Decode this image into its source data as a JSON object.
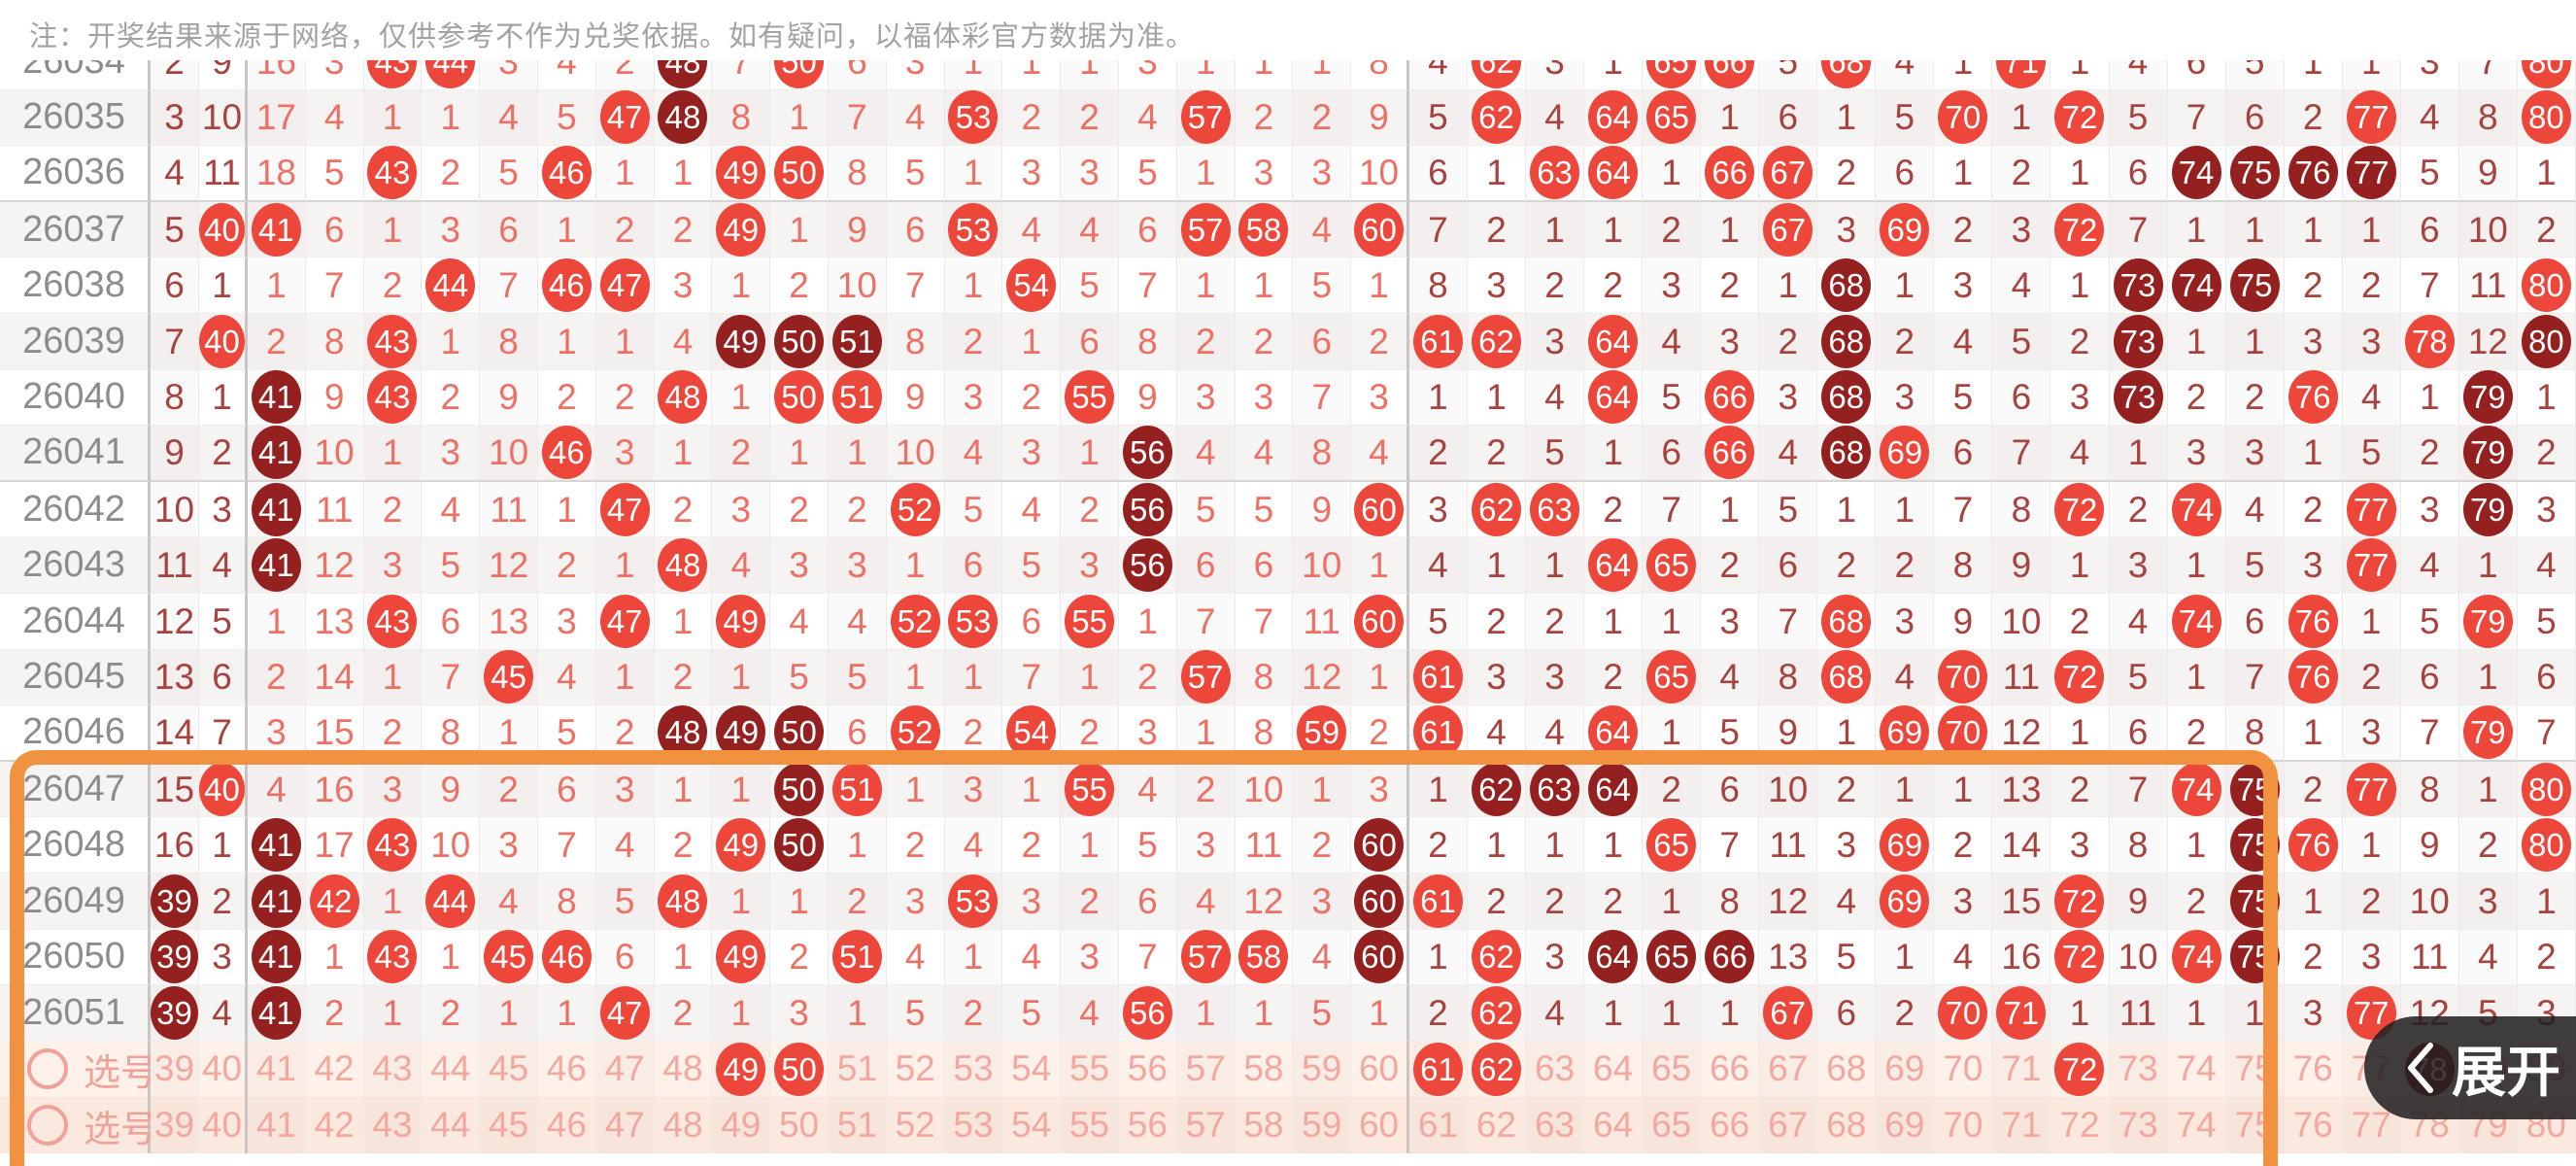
{
  "note": "注：开奖结果来源于网络，仅供参考不作为兑奖依据。如有疑问，以福体彩官方数据为准。",
  "expand_button": {
    "label": "展开",
    "icon": "chevron-left"
  },
  "columns": {
    "first_number": 39,
    "last_number": 80,
    "group_breaks_after": [
      40,
      60
    ]
  },
  "colors": {
    "ball_bright": "#ed463a",
    "ball_dark": "#94201f",
    "miss_text_outer_groups": "#a8423f",
    "miss_text_middle_group": "#ee6f64",
    "selection_text": "#f3a79e",
    "highlight_border": "#f0923f",
    "row_label": "#8c8c8c",
    "note_text": "#a2a2a2"
  },
  "partial_top_row": {
    "label": "26034",
    "cells": [
      "2",
      "9",
      "16",
      "3",
      "B43",
      "B44",
      "3",
      "4",
      "2",
      "D48",
      "7",
      "B50",
      "6",
      "3",
      "1",
      "1",
      "1",
      "3",
      "1",
      "1",
      "1",
      "8",
      "4",
      "B62",
      "3",
      "1",
      "B65",
      "B66",
      "5",
      "B68",
      "4",
      "1",
      "B71",
      "1",
      "4",
      "6",
      "5",
      "1",
      "1",
      "3",
      "7",
      "B80"
    ]
  },
  "rows": [
    {
      "label": "26035",
      "cells": [
        "3",
        "10",
        "17",
        "4",
        "1",
        "1",
        "4",
        "5",
        "B47",
        "D48",
        "8",
        "1",
        "7",
        "4",
        "B53",
        "2",
        "2",
        "4",
        "B57",
        "2",
        "2",
        "9",
        "5",
        "B62",
        "4",
        "B64",
        "B65",
        "1",
        "6",
        "1",
        "5",
        "B70",
        "1",
        "B72",
        "5",
        "7",
        "6",
        "2",
        "B77",
        "4",
        "8",
        "B80"
      ]
    },
    {
      "label": "26036",
      "cells": [
        "4",
        "11",
        "18",
        "5",
        "B43",
        "2",
        "5",
        "B46",
        "1",
        "1",
        "B49",
        "B50",
        "8",
        "5",
        "1",
        "3",
        "3",
        "5",
        "1",
        "3",
        "3",
        "10",
        "6",
        "1",
        "B63",
        "B64",
        "1",
        "B66",
        "B67",
        "2",
        "6",
        "1",
        "2",
        "1",
        "6",
        "D74",
        "D75",
        "D76",
        "D77",
        "5",
        "9",
        "1"
      ]
    },
    {
      "label": "26037",
      "cells": [
        "5",
        "B40",
        "B41",
        "6",
        "1",
        "3",
        "6",
        "1",
        "2",
        "2",
        "B49",
        "1",
        "9",
        "6",
        "B53",
        "4",
        "4",
        "6",
        "B57",
        "B58",
        "4",
        "B60",
        "7",
        "2",
        "1",
        "1",
        "2",
        "1",
        "B67",
        "3",
        "B69",
        "2",
        "3",
        "B72",
        "7",
        "1",
        "1",
        "1",
        "1",
        "6",
        "10",
        "2"
      ]
    },
    {
      "label": "26038",
      "cells": [
        "6",
        "1",
        "1",
        "7",
        "2",
        "B44",
        "7",
        "B46",
        "B47",
        "3",
        "1",
        "2",
        "10",
        "7",
        "1",
        "B54",
        "5",
        "7",
        "1",
        "1",
        "5",
        "1",
        "8",
        "3",
        "2",
        "2",
        "3",
        "2",
        "1",
        "D68",
        "1",
        "3",
        "4",
        "1",
        "D73",
        "D74",
        "D75",
        "2",
        "2",
        "7",
        "11",
        "B80"
      ]
    },
    {
      "label": "26039",
      "cells": [
        "7",
        "B40",
        "2",
        "8",
        "B43",
        "1",
        "8",
        "1",
        "1",
        "4",
        "D49",
        "D50",
        "D51",
        "8",
        "2",
        "1",
        "6",
        "8",
        "2",
        "2",
        "6",
        "2",
        "B61",
        "B62",
        "3",
        "B64",
        "4",
        "3",
        "2",
        "D68",
        "2",
        "4",
        "5",
        "2",
        "D73",
        "1",
        "1",
        "3",
        "3",
        "B78",
        "12",
        "D80"
      ]
    },
    {
      "label": "26040",
      "cells": [
        "8",
        "1",
        "D41",
        "9",
        "B43",
        "2",
        "9",
        "2",
        "2",
        "B48",
        "1",
        "B50",
        "B51",
        "9",
        "3",
        "2",
        "B55",
        "9",
        "3",
        "3",
        "7",
        "3",
        "1",
        "1",
        "4",
        "B64",
        "5",
        "B66",
        "3",
        "D68",
        "3",
        "5",
        "6",
        "3",
        "D73",
        "2",
        "2",
        "B76",
        "4",
        "1",
        "D79",
        "1"
      ]
    },
    {
      "label": "26041",
      "cells": [
        "9",
        "2",
        "D41",
        "10",
        "1",
        "3",
        "10",
        "B46",
        "3",
        "1",
        "2",
        "1",
        "1",
        "10",
        "4",
        "3",
        "1",
        "D56",
        "4",
        "4",
        "8",
        "4",
        "2",
        "2",
        "5",
        "1",
        "6",
        "B66",
        "4",
        "D68",
        "B69",
        "6",
        "7",
        "4",
        "1",
        "3",
        "3",
        "1",
        "5",
        "2",
        "D79",
        "2"
      ]
    },
    {
      "label": "26042",
      "cells": [
        "10",
        "3",
        "D41",
        "11",
        "2",
        "4",
        "11",
        "1",
        "B47",
        "2",
        "3",
        "2",
        "2",
        "B52",
        "5",
        "4",
        "2",
        "D56",
        "5",
        "5",
        "9",
        "B60",
        "3",
        "B62",
        "B63",
        "2",
        "7",
        "1",
        "5",
        "1",
        "1",
        "7",
        "8",
        "B72",
        "2",
        "B74",
        "4",
        "2",
        "B77",
        "3",
        "D79",
        "3"
      ]
    },
    {
      "label": "26043",
      "cells": [
        "11",
        "4",
        "D41",
        "12",
        "3",
        "5",
        "12",
        "2",
        "1",
        "B48",
        "4",
        "3",
        "3",
        "1",
        "6",
        "5",
        "3",
        "D56",
        "6",
        "6",
        "10",
        "1",
        "4",
        "1",
        "1",
        "B64",
        "B65",
        "2",
        "6",
        "2",
        "2",
        "8",
        "9",
        "1",
        "3",
        "1",
        "5",
        "3",
        "B77",
        "4",
        "1",
        "4"
      ]
    },
    {
      "label": "26044",
      "cells": [
        "12",
        "5",
        "1",
        "13",
        "B43",
        "6",
        "13",
        "3",
        "B47",
        "1",
        "B49",
        "4",
        "4",
        "B52",
        "B53",
        "6",
        "B55",
        "1",
        "7",
        "7",
        "11",
        "B60",
        "5",
        "2",
        "2",
        "1",
        "1",
        "3",
        "7",
        "B68",
        "3",
        "9",
        "10",
        "2",
        "4",
        "B74",
        "6",
        "B76",
        "1",
        "5",
        "B79",
        "5"
      ]
    },
    {
      "label": "26045",
      "cells": [
        "13",
        "6",
        "2",
        "14",
        "1",
        "7",
        "B45",
        "4",
        "1",
        "2",
        "1",
        "5",
        "5",
        "1",
        "1",
        "7",
        "1",
        "2",
        "B57",
        "8",
        "12",
        "1",
        "B61",
        "3",
        "3",
        "2",
        "B65",
        "4",
        "8",
        "B68",
        "4",
        "B70",
        "11",
        "B72",
        "5",
        "1",
        "7",
        "B76",
        "2",
        "6",
        "1",
        "6"
      ]
    },
    {
      "label": "26046",
      "cells": [
        "14",
        "7",
        "3",
        "15",
        "2",
        "8",
        "1",
        "5",
        "2",
        "D48",
        "D49",
        "D50",
        "6",
        "B52",
        "2",
        "B54",
        "2",
        "3",
        "1",
        "8",
        "B59",
        "2",
        "B61",
        "4",
        "4",
        "B64",
        "1",
        "5",
        "9",
        "1",
        "B69",
        "B70",
        "12",
        "1",
        "6",
        "2",
        "8",
        "1",
        "3",
        "7",
        "B79",
        "7"
      ]
    },
    {
      "label": "26047",
      "cells": [
        "15",
        "B40",
        "4",
        "16",
        "3",
        "9",
        "2",
        "6",
        "3",
        "1",
        "1",
        "D50",
        "B51",
        "1",
        "3",
        "1",
        "B55",
        "4",
        "2",
        "10",
        "1",
        "3",
        "1",
        "D62",
        "D63",
        "D64",
        "2",
        "6",
        "10",
        "2",
        "1",
        "1",
        "13",
        "2",
        "7",
        "B74",
        "D75",
        "2",
        "B77",
        "8",
        "1",
        "B80"
      ]
    },
    {
      "label": "26048",
      "cells": [
        "16",
        "1",
        "D41",
        "17",
        "B43",
        "10",
        "3",
        "7",
        "4",
        "2",
        "B49",
        "D50",
        "1",
        "2",
        "4",
        "2",
        "1",
        "5",
        "3",
        "11",
        "2",
        "D60",
        "2",
        "1",
        "1",
        "1",
        "B65",
        "7",
        "11",
        "3",
        "B69",
        "2",
        "14",
        "3",
        "8",
        "1",
        "D75",
        "B76",
        "1",
        "9",
        "2",
        "B80"
      ]
    },
    {
      "label": "26049",
      "cells": [
        "D39",
        "2",
        "D41",
        "B42",
        "1",
        "B44",
        "4",
        "8",
        "5",
        "B48",
        "1",
        "1",
        "2",
        "3",
        "B53",
        "3",
        "2",
        "6",
        "4",
        "12",
        "3",
        "D60",
        "B61",
        "2",
        "2",
        "2",
        "1",
        "8",
        "12",
        "4",
        "B69",
        "3",
        "15",
        "B72",
        "9",
        "2",
        "D75",
        "1",
        "2",
        "10",
        "3",
        "1"
      ]
    },
    {
      "label": "26050",
      "cells": [
        "D39",
        "3",
        "D41",
        "1",
        "B43",
        "1",
        "B45",
        "B46",
        "6",
        "1",
        "B49",
        "2",
        "B51",
        "4",
        "1",
        "4",
        "3",
        "7",
        "B57",
        "B58",
        "4",
        "D60",
        "1",
        "B62",
        "3",
        "D64",
        "D65",
        "D66",
        "13",
        "5",
        "1",
        "4",
        "16",
        "B72",
        "10",
        "B74",
        "D75",
        "2",
        "3",
        "11",
        "4",
        "2"
      ]
    },
    {
      "label": "26051",
      "cells": [
        "D39",
        "4",
        "D41",
        "2",
        "1",
        "2",
        "1",
        "1",
        "B47",
        "2",
        "1",
        "3",
        "1",
        "5",
        "2",
        "5",
        "4",
        "B56",
        "1",
        "1",
        "5",
        "1",
        "2",
        "B62",
        "4",
        "1",
        "1",
        "1",
        "B67",
        "6",
        "2",
        "B70",
        "B71",
        "1",
        "11",
        "1",
        "1",
        "3",
        "B77",
        "12",
        "5",
        "3"
      ]
    }
  ],
  "selection_rows": [
    {
      "label": "选号",
      "cells": [
        "39",
        "40",
        "41",
        "42",
        "43",
        "44",
        "45",
        "46",
        "47",
        "48",
        "B49",
        "B50",
        "51",
        "52",
        "53",
        "54",
        "55",
        "56",
        "57",
        "58",
        "59",
        "60",
        "B61",
        "B62",
        "63",
        "64",
        "65",
        "66",
        "67",
        "68",
        "69",
        "70",
        "71",
        "B72",
        "73",
        "74",
        "75",
        "76",
        "77",
        "D78",
        "79",
        "80"
      ]
    },
    {
      "label": "选号",
      "cells": [
        "39",
        "40",
        "41",
        "42",
        "43",
        "44",
        "45",
        "46",
        "47",
        "48",
        "49",
        "50",
        "51",
        "52",
        "53",
        "54",
        "55",
        "56",
        "57",
        "58",
        "59",
        "60",
        "61",
        "62",
        "63",
        "64",
        "65",
        "66",
        "67",
        "68",
        "69",
        "70",
        "71",
        "72",
        "73",
        "74",
        "75",
        "76",
        "77",
        "78",
        "79",
        "80"
      ]
    }
  ]
}
